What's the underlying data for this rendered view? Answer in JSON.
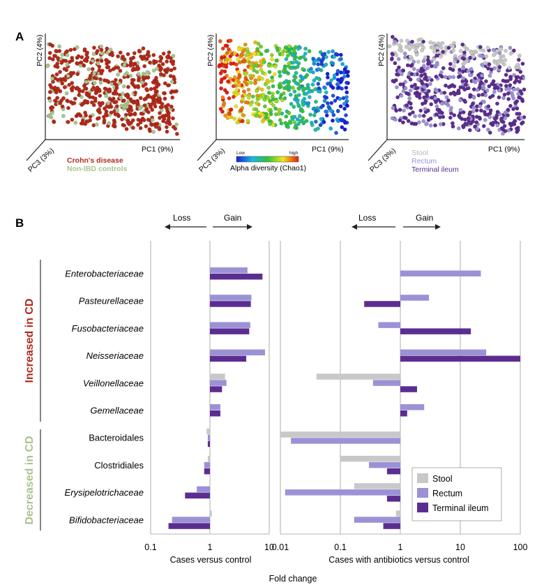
{
  "panel_a": {
    "label": "A",
    "colors": {
      "crohns": "#b32a1a",
      "control": "#a9c48f",
      "stool": "#c8c8c8",
      "rectum": "#9b92d6",
      "ileum": "#5c2d91"
    },
    "plots": [
      {
        "pc1": "PC1 (9%)",
        "pc2": "PC2 (4%)",
        "pc3": "PC3 (3%)",
        "legend": [
          "Crohn's disease",
          "Non-IBD controls"
        ]
      },
      {
        "pc1": "PC1 (9%)",
        "pc2": "PC2 (4%)",
        "pc3": "PC3 (3%)",
        "colorbar": {
          "low": "Low",
          "high": "high",
          "title": "Alpha diversity (Chao1)"
        }
      },
      {
        "pc1": "PC1 (9%)",
        "pc2": "PC2 (4%)",
        "pc3": "PC3 (3%)",
        "legend": [
          "Stool",
          "Rectum",
          "Terminal ileum"
        ]
      }
    ]
  },
  "panel_b": {
    "label": "B",
    "loss": "Loss",
    "gain": "Gain",
    "group_increased": "Increased in CD",
    "group_decreased": "Decreased in CD",
    "group_colors": {
      "increased": "#b32a1a",
      "decreased": "#a9c48f"
    },
    "left_xlabel": "Cases versus control",
    "right_xlabel": "Cases with antibiotics versus control",
    "common_xlabel": "Fold change",
    "left_ticks": [
      "0.1",
      "1",
      "10"
    ],
    "right_ticks": [
      "0.01",
      "0.1",
      "1",
      "10",
      "100"
    ],
    "legend": [
      "Stool",
      "Rectum",
      "Terminal ileum"
    ]
  },
  "chart_data": {
    "type": "bar",
    "orientation": "horizontal",
    "xscale": "log",
    "categories": [
      "Enterobacteriaceae",
      "Pasteurellaceae",
      "Fusobacteriaceae",
      "Neisseriaceae",
      "Veillonellaceae",
      "Gemellaceae",
      "Bacteroidales",
      "Clostridiales",
      "Erysipelotrichaceae",
      "Bifidobacteriaceae"
    ],
    "italic": [
      true,
      true,
      true,
      true,
      true,
      true,
      false,
      false,
      true,
      true
    ],
    "colors": {
      "Stool": "#c8c8c8",
      "Rectum": "#9b92d6",
      "Terminal ileum": "#5c2d91"
    },
    "panels": [
      {
        "xlabel": "Cases versus control",
        "xlim": [
          0.1,
          10
        ],
        "series": [
          {
            "name": "Stool",
            "values": [
              null,
              null,
              null,
              null,
              1.8,
              null,
              0.88,
              0.92,
              null,
              1.08
            ]
          },
          {
            "name": "Rectum",
            "values": [
              4.3,
              5.0,
              4.8,
              8.5,
              1.9,
              1.5,
              0.92,
              0.8,
              0.6,
              0.23
            ]
          },
          {
            "name": "Terminal ileum",
            "values": [
              7.7,
              4.9,
              4.6,
              4.1,
              1.6,
              1.5,
              0.92,
              0.8,
              0.38,
              0.2
            ]
          }
        ]
      },
      {
        "xlabel": "Cases with antibiotics versus control",
        "xlim": [
          0.01,
          100
        ],
        "series": [
          {
            "name": "Stool",
            "values": [
              null,
              null,
              null,
              null,
              0.04,
              null,
              0.01,
              0.1,
              0.17,
              0.85
            ]
          },
          {
            "name": "Rectum",
            "values": [
              22,
              3.0,
              0.43,
              27,
              0.35,
              2.5,
              0.015,
              0.3,
              0.012,
              0.17
            ]
          },
          {
            "name": "Terminal ileum",
            "values": [
              null,
              0.25,
              15,
              100,
              1.9,
              1.3,
              null,
              0.6,
              0.6,
              0.52
            ]
          }
        ]
      }
    ]
  }
}
